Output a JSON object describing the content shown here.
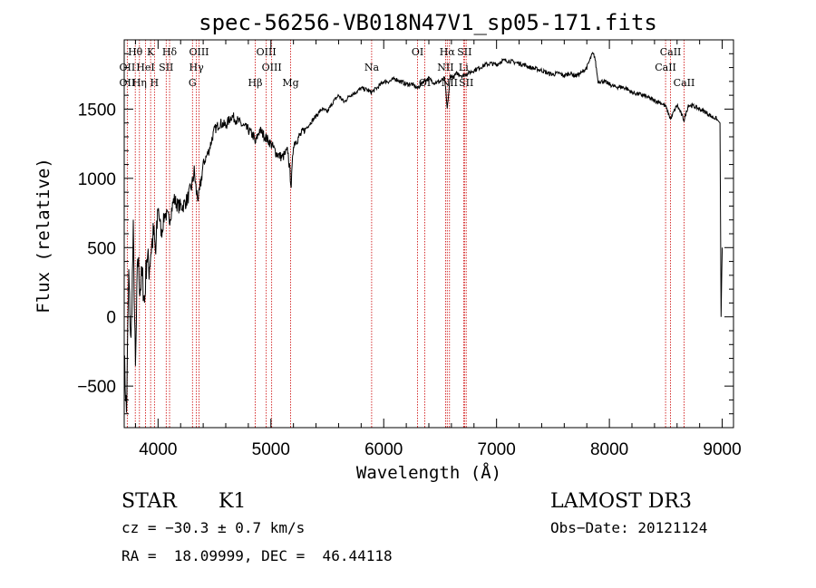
{
  "chart_data": {
    "type": "line",
    "title": "spec-56256-VB018N47V1_sp05-171.fits",
    "xlabel": "Wavelength (Å)",
    "ylabel": "Flux (relative)",
    "xlim": [
      3700,
      9100
    ],
    "ylim": [
      -800,
      2000
    ],
    "xticks": [
      {
        "value": 4000,
        "label": "4000"
      },
      {
        "value": 5000,
        "label": "5000"
      },
      {
        "value": 6000,
        "label": "6000"
      },
      {
        "value": 7000,
        "label": "7000"
      },
      {
        "value": 8000,
        "label": "8000"
      },
      {
        "value": 9000,
        "label": "9000"
      }
    ],
    "yticks": [
      {
        "value": -500,
        "label": "−500"
      },
      {
        "value": 0,
        "label": "0"
      },
      {
        "value": 500,
        "label": "500"
      },
      {
        "value": 1000,
        "label": "1000"
      },
      {
        "value": 1500,
        "label": "1500"
      }
    ],
    "series": [
      {
        "name": "flux",
        "x": [
          3700,
          3720,
          3740,
          3760,
          3780,
          3800,
          3820,
          3840,
          3860,
          3880,
          3900,
          3920,
          3940,
          3960,
          3980,
          4000,
          4030,
          4060,
          4100,
          4140,
          4180,
          4220,
          4260,
          4300,
          4320,
          4340,
          4360,
          4400,
          4450,
          4500,
          4550,
          4600,
          4650,
          4700,
          4750,
          4800,
          4850,
          4860,
          4900,
          4950,
          5000,
          5050,
          5100,
          5150,
          5180,
          5200,
          5250,
          5300,
          5350,
          5400,
          5450,
          5500,
          5550,
          5600,
          5650,
          5700,
          5750,
          5800,
          5850,
          5890,
          5950,
          6000,
          6050,
          6100,
          6150,
          6200,
          6250,
          6300,
          6350,
          6400,
          6450,
          6500,
          6540,
          6563,
          6590,
          6620,
          6650,
          6700,
          6750,
          6800,
          6850,
          6900,
          6950,
          7000,
          7050,
          7100,
          7150,
          7200,
          7250,
          7300,
          7350,
          7400,
          7450,
          7500,
          7550,
          7600,
          7650,
          7700,
          7750,
          7800,
          7850,
          7870,
          7900,
          7950,
          8000,
          8050,
          8100,
          8150,
          8200,
          8250,
          8300,
          8350,
          8400,
          8450,
          8498,
          8542,
          8600,
          8662,
          8700,
          8750,
          8800,
          8850,
          8900,
          8950,
          8980,
          8990,
          9000
        ],
        "y": [
          -300,
          -700,
          300,
          -200,
          600,
          -400,
          450,
          200,
          300,
          100,
          450,
          350,
          500,
          600,
          450,
          800,
          600,
          750,
          700,
          850,
          800,
          800,
          850,
          950,
          1050,
          900,
          850,
          1100,
          1200,
          1350,
          1400,
          1380,
          1450,
          1420,
          1380,
          1350,
          1300,
          1250,
          1350,
          1300,
          1250,
          1180,
          1150,
          1200,
          950,
          1250,
          1300,
          1350,
          1400,
          1450,
          1500,
          1480,
          1550,
          1600,
          1550,
          1600,
          1620,
          1650,
          1640,
          1620,
          1660,
          1700,
          1700,
          1720,
          1700,
          1680,
          1680,
          1650,
          1700,
          1720,
          1690,
          1700,
          1720,
          1500,
          1740,
          1730,
          1760,
          1740,
          1760,
          1780,
          1800,
          1820,
          1830,
          1820,
          1850,
          1850,
          1840,
          1830,
          1820,
          1800,
          1790,
          1780,
          1760,
          1750,
          1760,
          1740,
          1760,
          1740,
          1760,
          1800,
          1900,
          1880,
          1700,
          1700,
          1680,
          1660,
          1660,
          1650,
          1620,
          1610,
          1600,
          1580,
          1560,
          1550,
          1520,
          1430,
          1530,
          1420,
          1530,
          1520,
          1500,
          1480,
          1450,
          1430,
          1400,
          0,
          500
        ]
      }
    ],
    "lines": [
      {
        "label": "Hθ",
        "wl": 3798,
        "row": 1
      },
      {
        "label": "OII",
        "wl": 3727,
        "row": 2
      },
      {
        "label": "OII",
        "wl": 3727,
        "row": 3
      },
      {
        "label": "Hη",
        "wl": 3835,
        "row": 3
      },
      {
        "label": "K",
        "wl": 3934,
        "row": 1
      },
      {
        "label": "HeI",
        "wl": 3889,
        "row": 2
      },
      {
        "label": "H",
        "wl": 3968,
        "row": 3
      },
      {
        "label": "SII",
        "wl": 4072,
        "row": 2
      },
      {
        "label": "Hδ",
        "wl": 4102,
        "row": 1
      },
      {
        "label": "OIII",
        "wl": 4363,
        "row": 1
      },
      {
        "label": "Hγ",
        "wl": 4340,
        "row": 2
      },
      {
        "label": "G",
        "wl": 4305,
        "row": 3
      },
      {
        "label": "OIII",
        "wl": 4959,
        "row": 1
      },
      {
        "label": "OIII",
        "wl": 5007,
        "row": 2
      },
      {
        "label": "Hβ",
        "wl": 4861,
        "row": 3
      },
      {
        "label": "Mg",
        "wl": 5175,
        "row": 3
      },
      {
        "label": "Na",
        "wl": 5893,
        "row": 2
      },
      {
        "label": "OI",
        "wl": 6300,
        "row": 1
      },
      {
        "label": "OI",
        "wl": 6364,
        "row": 3
      },
      {
        "label": "Hα",
        "wl": 6563,
        "row": 1
      },
      {
        "label": "SII",
        "wl": 6716,
        "row": 1
      },
      {
        "label": "NII",
        "wl": 6548,
        "row": 2
      },
      {
        "label": "Li",
        "wl": 6708,
        "row": 2
      },
      {
        "label": "NII",
        "wl": 6583,
        "row": 3
      },
      {
        "label": "SII",
        "wl": 6731,
        "row": 3
      },
      {
        "label": "CaII",
        "wl": 8542,
        "row": 1
      },
      {
        "label": "CaII",
        "wl": 8498,
        "row": 2
      },
      {
        "label": "CaII",
        "wl": 8662,
        "row": 3
      }
    ],
    "line_colors": {
      "spectrum": "#000000",
      "markers": "#cc0000"
    }
  },
  "info": {
    "class": "STAR",
    "subclass": "K1",
    "survey": "LAMOST DR3",
    "cz": "cz = −30.3 ± 0.7 km/s",
    "obs_date": "Obs−Date: 20121124",
    "coords": "RA =  18.09999, DEC =  46.44118"
  }
}
